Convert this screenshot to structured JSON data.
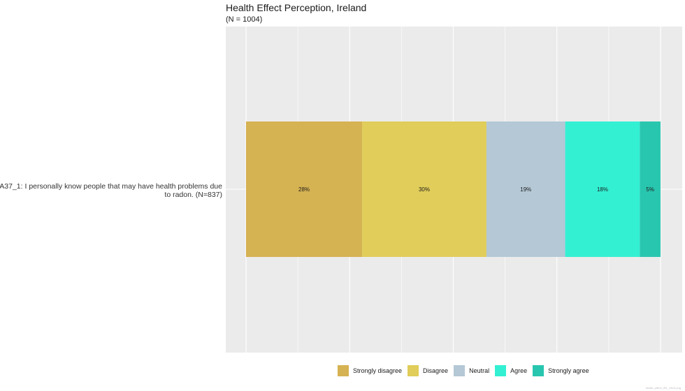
{
  "chart_data": {
    "type": "bar",
    "orientation": "horizontal-stacked",
    "title": "Health Effect Perception, Ireland",
    "subtitle": "(N = 1004)",
    "categories": [
      "RA37_1: I personally know people that may have health problems due to radon. (N=837)"
    ],
    "series": [
      {
        "name": "Strongly disagree",
        "values": [
          28
        ],
        "label": "28%",
        "color": "#D5B252"
      },
      {
        "name": "Disagree",
        "values": [
          30
        ],
        "label": "30%",
        "color": "#E1CD59"
      },
      {
        "name": "Neutral",
        "values": [
          19
        ],
        "label": "19%",
        "color": "#B4C8D6"
      },
      {
        "name": "Agree",
        "values": [
          18
        ],
        "label": "18%",
        "color": "#33F0D3"
      },
      {
        "name": "Strongly agree",
        "values": [
          5
        ],
        "label": "5%",
        "color": "#29C6AF"
      }
    ],
    "xlim": [
      0,
      100
    ],
    "grid": true,
    "legend_position": "bottom",
    "panel_background": "#EBEBEB"
  },
  "caption": "health_effect_IRL_1fe1t.png"
}
